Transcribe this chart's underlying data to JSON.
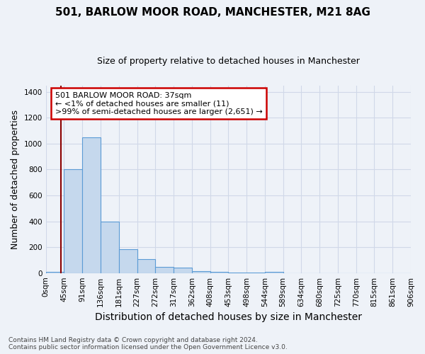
{
  "title1": "501, BARLOW MOOR ROAD, MANCHESTER, M21 8AG",
  "title2": "Size of property relative to detached houses in Manchester",
  "xlabel": "Distribution of detached houses by size in Manchester",
  "ylabel": "Number of detached properties",
  "bar_values": [
    11,
    800,
    1050,
    400,
    185,
    105,
    50,
    40,
    15,
    10,
    5,
    5,
    10,
    0,
    0,
    0,
    0,
    0,
    0,
    0
  ],
  "bin_labels": [
    "0sqm",
    "45sqm",
    "91sqm",
    "136sqm",
    "181sqm",
    "227sqm",
    "272sqm",
    "317sqm",
    "362sqm",
    "408sqm",
    "453sqm",
    "498sqm",
    "544sqm",
    "589sqm",
    "634sqm",
    "680sqm",
    "725sqm",
    "770sqm",
    "815sqm",
    "861sqm",
    "906sqm"
  ],
  "bar_color": "#c5d8ed",
  "bar_edge_color": "#5b9bd5",
  "ylim": [
    0,
    1450
  ],
  "yticks": [
    0,
    200,
    400,
    600,
    800,
    1000,
    1200,
    1400
  ],
  "property_sqm": 37,
  "red_line_color": "#8b0000",
  "annotation_text": "501 BARLOW MOOR ROAD: 37sqm\n← <1% of detached houses are smaller (11)\n>99% of semi-detached houses are larger (2,651) →",
  "annotation_box_color": "#ffffff",
  "annotation_box_edge": "#cc0000",
  "footnote": "Contains HM Land Registry data © Crown copyright and database right 2024.\nContains public sector information licensed under the Open Government Licence v3.0.",
  "grid_color": "#d0d8e8",
  "bg_color": "#eef2f8",
  "title1_fontsize": 11,
  "title2_fontsize": 9,
  "xlabel_fontsize": 10,
  "ylabel_fontsize": 9,
  "tick_fontsize": 7.5,
  "footnote_fontsize": 6.5,
  "annot_fontsize": 8.0
}
